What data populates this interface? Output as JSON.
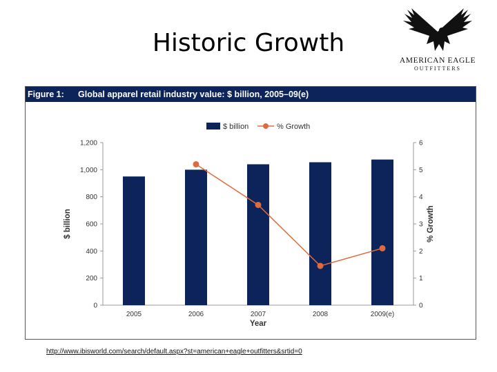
{
  "slide": {
    "title": "Historic Growth",
    "url": "http://www.ibisworld.com/search/default.aspx?st=american+eagle+outfitters&srtid=0"
  },
  "logo": {
    "line1": "AMERICAN EAGLE",
    "line2": "OUTFITTERS",
    "icon": "eagle-icon"
  },
  "figure": {
    "number": "Figure 1:",
    "title": "Global apparel retail industry value: $ billion, 2005–09(e)"
  },
  "colors": {
    "bar": "#0c2459",
    "line": "#e06a40",
    "header": "#0c2459"
  },
  "chart_data": {
    "type": "bar",
    "categories": [
      "2005",
      "2006",
      "2007",
      "2008",
      "2009(e)"
    ],
    "series": [
      {
        "name": "$ billion",
        "type": "bar",
        "axis": "left",
        "values": [
          950,
          1000,
          1040,
          1055,
          1075
        ]
      },
      {
        "name": "% Growth",
        "type": "line",
        "axis": "right",
        "values": [
          null,
          5.2,
          3.7,
          1.45,
          2.1
        ]
      }
    ],
    "xlabel": "Year",
    "ylabel": "$ billion",
    "y2label": "% Growth",
    "ylim": [
      0,
      1200
    ],
    "y2lim": [
      0,
      6
    ],
    "yticks": [
      "0",
      "200",
      "400",
      "600",
      "800",
      "1,000",
      "1,200"
    ],
    "y2ticks": [
      "0",
      "1",
      "2",
      "3",
      "4",
      "5",
      "6"
    ],
    "legend": "top-center",
    "grid": false
  }
}
